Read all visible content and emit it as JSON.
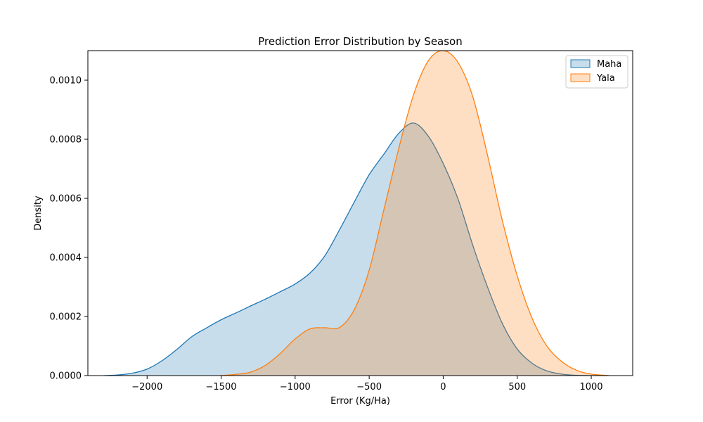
{
  "chart_data": {
    "type": "area",
    "title": "Prediction Error Distribution by Season",
    "xlabel": "Error (Kg/Ha)",
    "ylabel": "Density",
    "xlim": [
      -2400,
      1280
    ],
    "ylim": [
      0,
      0.0011
    ],
    "x_ticks": [
      -2000,
      -1500,
      -1000,
      -500,
      0,
      500,
      1000
    ],
    "x_tick_labels": [
      "−2000",
      "−1500",
      "−1000",
      "−500",
      "0",
      "500",
      "1000"
    ],
    "y_ticks": [
      0,
      0.0002,
      0.0004,
      0.0006,
      0.0008,
      0.001
    ],
    "y_tick_labels": [
      "0.0000",
      "0.0002",
      "0.0004",
      "0.0006",
      "0.0008",
      "0.0010"
    ],
    "grid": false,
    "legend_position": "top-right",
    "series": [
      {
        "name": "Maha",
        "color": "#1f77b4",
        "x": [
          -2290,
          -2200,
          -2100,
          -2000,
          -1900,
          -1800,
          -1700,
          -1600,
          -1500,
          -1400,
          -1300,
          -1200,
          -1100,
          -1000,
          -900,
          -800,
          -700,
          -600,
          -500,
          -400,
          -300,
          -200,
          -100,
          0,
          100,
          200,
          300,
          400,
          500,
          600,
          700,
          800,
          900,
          1000,
          1110
        ],
        "y": [
          0,
          2e-06,
          8e-06,
          2.2e-05,
          5e-05,
          8.8e-05,
          0.000131,
          0.000161,
          0.000189,
          0.000212,
          0.000236,
          0.000259,
          0.000284,
          0.00031,
          0.000347,
          0.000405,
          0.000494,
          0.000588,
          0.00068,
          0.00075,
          0.00082,
          0.000855,
          0.00081,
          0.000718,
          0.000598,
          0.000441,
          0.000299,
          0.000176,
          9e-05,
          4.2e-05,
          1.6e-05,
          5e-06,
          1e-06,
          0,
          0
        ]
      },
      {
        "name": "Yala",
        "color": "#ff7f0e",
        "x": [
          -1510,
          -1400,
          -1300,
          -1200,
          -1100,
          -1000,
          -900,
          -800,
          -700,
          -600,
          -500,
          -400,
          -300,
          -200,
          -100,
          0,
          100,
          200,
          300,
          400,
          500,
          600,
          700,
          800,
          900,
          1000,
          1120
        ],
        "y": [
          0,
          4e-06,
          1.2e-05,
          3.5e-05,
          7.5e-05,
          0.000124,
          0.000158,
          0.000162,
          0.000163,
          0.000224,
          0.000357,
          0.000563,
          0.000769,
          0.000951,
          0.001066,
          0.0011,
          0.00106,
          0.000944,
          0.000745,
          0.000524,
          0.000338,
          0.000195,
          0.0001,
          4.8e-05,
          1.8e-05,
          5e-06,
          0
        ]
      }
    ]
  }
}
